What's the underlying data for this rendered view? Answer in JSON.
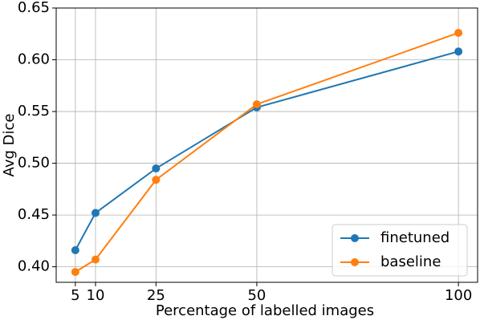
{
  "chart_data": {
    "type": "line",
    "x_label": "Percentage of labelled images",
    "y_label": "Avg Dice",
    "x": [
      5,
      10,
      25,
      50,
      100
    ],
    "series": [
      {
        "name": "finetuned",
        "color": "#1f77b4",
        "values": [
          0.416,
          0.452,
          0.495,
          0.554,
          0.608
        ]
      },
      {
        "name": "baseline",
        "color": "#ff7f0e",
        "values": [
          0.395,
          0.407,
          0.484,
          0.557,
          0.626
        ]
      }
    ],
    "xlim": [
      0.25,
      104.75
    ],
    "ylim": [
      0.385,
      0.65
    ],
    "xticks": [
      5,
      10,
      25,
      50,
      100
    ],
    "yticks": [
      {
        "value": 0.4,
        "label": "0.40"
      },
      0.45,
      {
        "value": 0.5,
        "label": "0.50"
      },
      0.55,
      {
        "value": 0.6,
        "label": "0.60"
      },
      0.65
    ],
    "grid": true,
    "legend": "lower right"
  }
}
